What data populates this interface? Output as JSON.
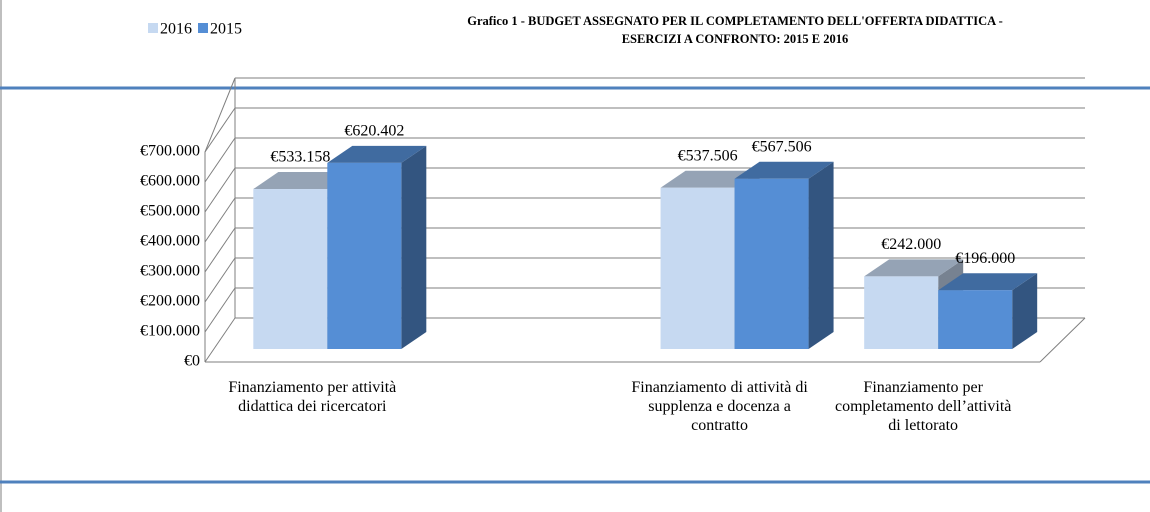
{
  "chart_data": {
    "type": "bar3d",
    "title": [
      "Grafico 1 - BUDGET ASSEGNATO PER IL COMPLETAMENTO DELL'OFFERTA DIDATTICA -",
      "ESERCIZI A CONFRONTO: 2015 E 2016"
    ],
    "categories": [
      "Finanziamento per attività didattica dei ricercatori",
      null,
      "Finanziamento di attività di supplenza e docenza a contratto",
      "Finanziamento per completamento dell’attività di lettorato"
    ],
    "series": [
      {
        "name": "2016",
        "color": "#c6d9f1",
        "values": [
          533158,
          null,
          537506,
          242000
        ],
        "value_labels": [
          "€533.158",
          null,
          "€537.506",
          "€242.000"
        ]
      },
      {
        "name": "2015",
        "color": "#558ed5",
        "values": [
          620402,
          null,
          567506,
          196000
        ],
        "value_labels": [
          "€620.402",
          null,
          "€567.506",
          "€196.000"
        ]
      }
    ],
    "ylim": [
      0,
      700000
    ],
    "yticks": [
      {
        "value": 0,
        "label": "€0"
      },
      {
        "value": 100000,
        "label": "€100.000"
      },
      {
        "value": 200000,
        "label": "€200.000"
      },
      {
        "value": 300000,
        "label": "€300.000"
      },
      {
        "value": 400000,
        "label": "€400.000"
      },
      {
        "value": 500000,
        "label": "€500.000"
      },
      {
        "value": 600000,
        "label": "€600.000"
      },
      {
        "value": 700000,
        "label": "€700.000"
      }
    ],
    "grid": true,
    "legend": "top-left"
  }
}
